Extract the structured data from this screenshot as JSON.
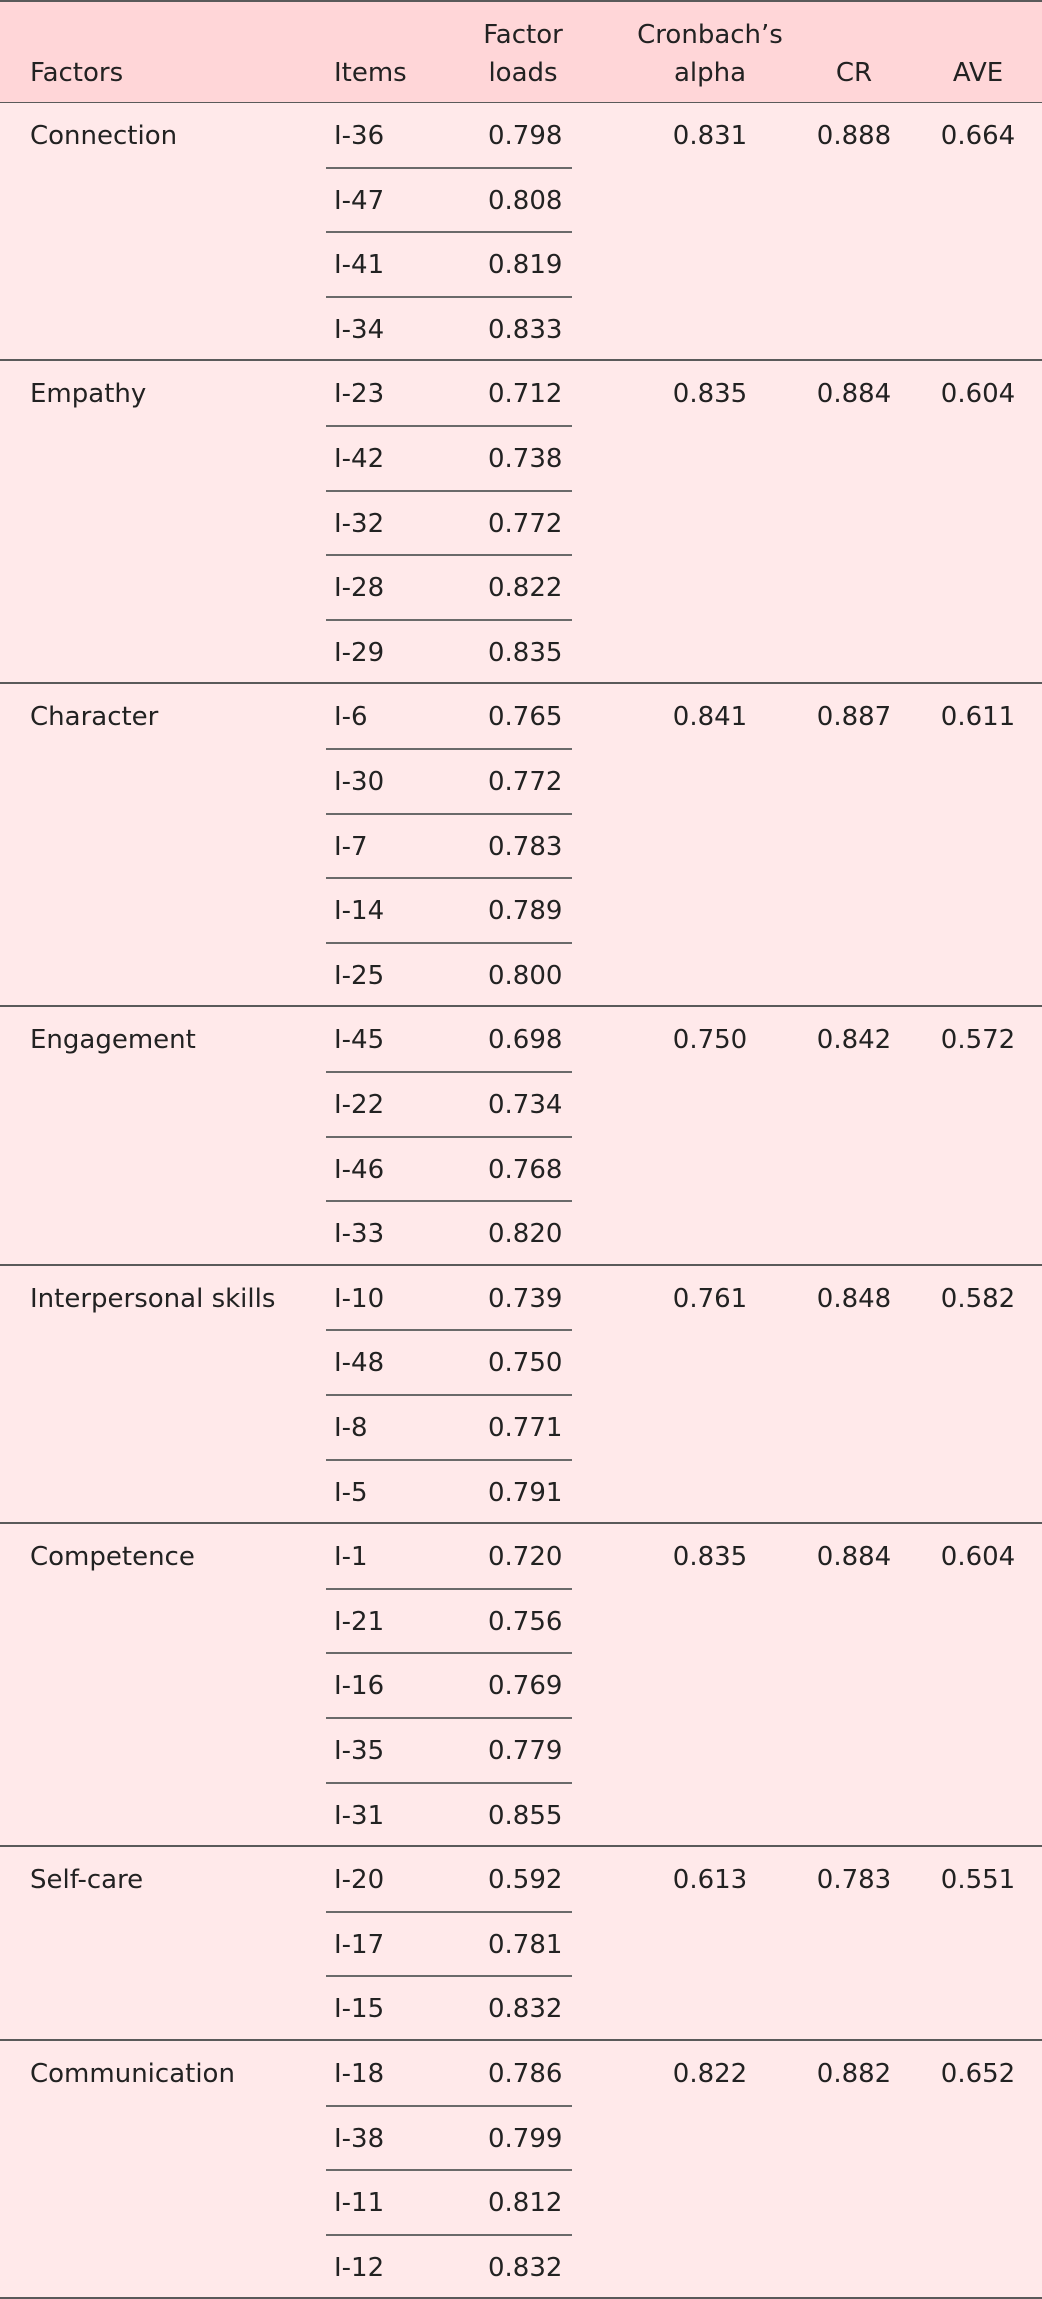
{
  "table": {
    "headers": {
      "factors": "Factors",
      "items": "Items",
      "factor_loads_line1": "Factor",
      "factor_loads_line2": "loads",
      "alpha_line1": "Cronbach’s",
      "alpha_line2": "alpha",
      "cr": "CR",
      "ave": "AVE"
    },
    "groups": [
      {
        "factor": "Connection",
        "alpha": "0.831",
        "cr": "0.888",
        "ave": "0.664",
        "items": [
          {
            "item": "I-36",
            "load": "0.798"
          },
          {
            "item": "I-47",
            "load": "0.808"
          },
          {
            "item": "I-41",
            "load": "0.819"
          },
          {
            "item": "I-34",
            "load": "0.833"
          }
        ]
      },
      {
        "factor": "Empathy",
        "alpha": "0.835",
        "cr": "0.884",
        "ave": "0.604",
        "items": [
          {
            "item": "I-23",
            "load": "0.712"
          },
          {
            "item": "I-42",
            "load": "0.738"
          },
          {
            "item": "I-32",
            "load": "0.772"
          },
          {
            "item": "I-28",
            "load": "0.822"
          },
          {
            "item": "I-29",
            "load": "0.835"
          }
        ]
      },
      {
        "factor": "Character",
        "alpha": "0.841",
        "cr": "0.887",
        "ave": "0.611",
        "items": [
          {
            "item": "I-6",
            "load": "0.765"
          },
          {
            "item": "I-30",
            "load": "0.772"
          },
          {
            "item": "I-7",
            "load": "0.783"
          },
          {
            "item": "I-14",
            "load": "0.789"
          },
          {
            "item": "I-25",
            "load": "0.800"
          }
        ]
      },
      {
        "factor": "Engagement",
        "alpha": "0.750",
        "cr": "0.842",
        "ave": "0.572",
        "items": [
          {
            "item": "I-45",
            "load": "0.698"
          },
          {
            "item": "I-22",
            "load": "0.734"
          },
          {
            "item": "I-46",
            "load": "0.768"
          },
          {
            "item": "I-33",
            "load": "0.820"
          }
        ]
      },
      {
        "factor": "Interpersonal skills",
        "alpha": "0.761",
        "cr": "0.848",
        "ave": "0.582",
        "items": [
          {
            "item": "I-10",
            "load": "0.739"
          },
          {
            "item": "I-48",
            "load": "0.750"
          },
          {
            "item": "I-8",
            "load": "0.771"
          },
          {
            "item": "I-5",
            "load": "0.791"
          }
        ]
      },
      {
        "factor": "Competence",
        "alpha": "0.835",
        "cr": "0.884",
        "ave": "0.604",
        "items": [
          {
            "item": "I-1",
            "load": "0.720"
          },
          {
            "item": "I-21",
            "load": "0.756"
          },
          {
            "item": "I-16",
            "load": "0.769"
          },
          {
            "item": "I-35",
            "load": "0.779"
          },
          {
            "item": "I-31",
            "load": "0.855"
          }
        ]
      },
      {
        "factor": "Self-care",
        "alpha": "0.613",
        "cr": "0.783",
        "ave": "0.551",
        "items": [
          {
            "item": "I-20",
            "load": "0.592"
          },
          {
            "item": "I-17",
            "load": "0.781"
          },
          {
            "item": "I-15",
            "load": "0.832"
          }
        ]
      },
      {
        "factor": "Communication",
        "alpha": "0.822",
        "cr": "0.882",
        "ave": "0.652",
        "items": [
          {
            "item": "I-18",
            "load": "0.786"
          },
          {
            "item": "I-38",
            "load": "0.799"
          },
          {
            "item": "I-11",
            "load": "0.812"
          },
          {
            "item": "I-12",
            "load": "0.832"
          }
        ]
      }
    ]
  }
}
